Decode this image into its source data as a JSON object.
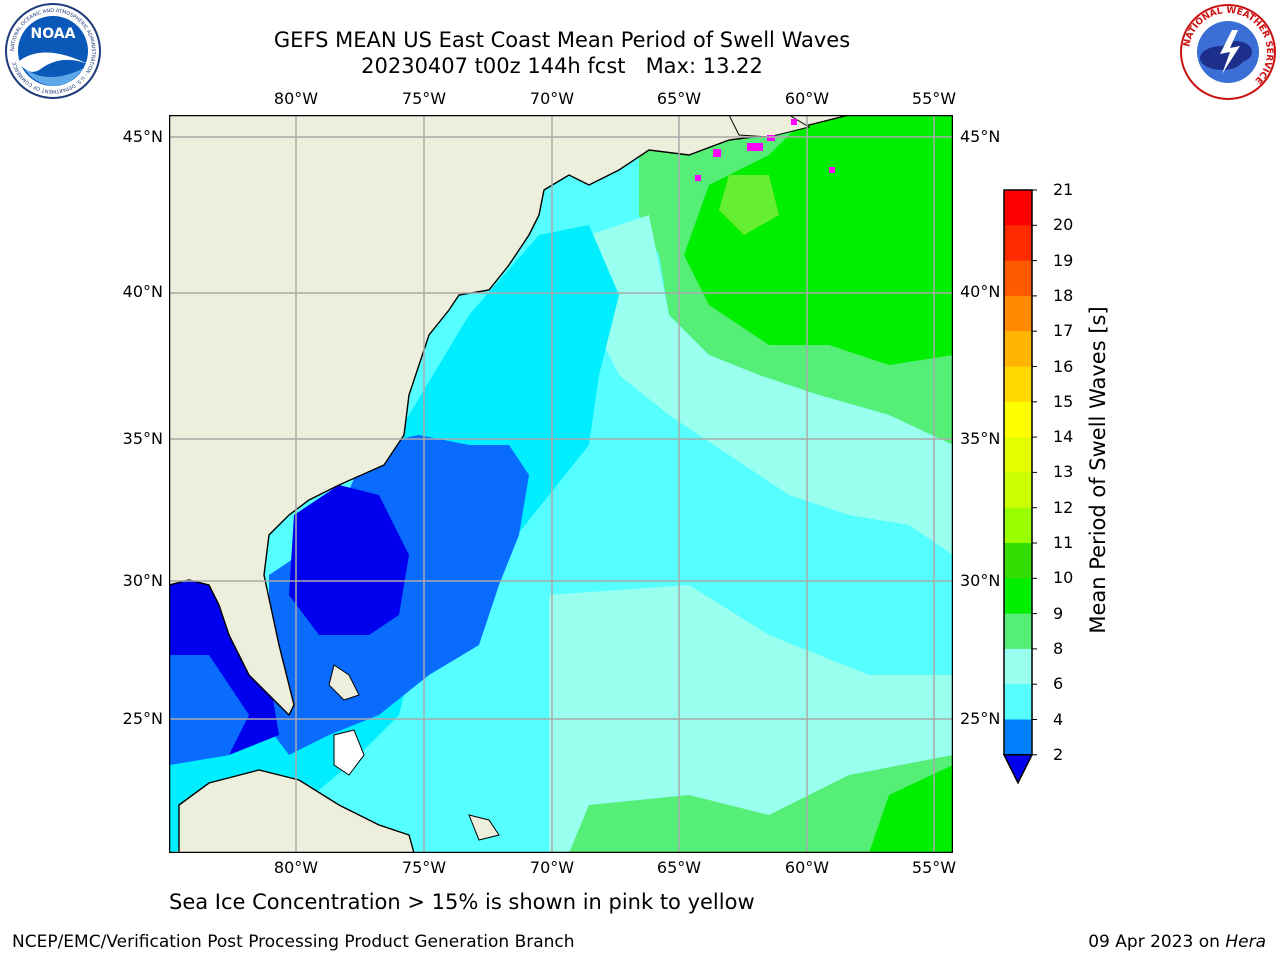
{
  "header": {
    "title_line1": "GEFS MEAN US East Coast Mean Period of Swell Waves",
    "title_date": "20230407 t00z 144h fcst",
    "title_max": "Max: 13.22"
  },
  "logos": {
    "noaa_text": "NOAA",
    "noaa_ring": "NATIONAL OCEANIC AND ATMOSPHERIC ADMINISTRATION · U.S. DEPARTMENT OF COMMERCE",
    "nws_ring": "NATIONAL WEATHER SERVICE"
  },
  "axes": {
    "lon_labels": [
      "80°W",
      "75°W",
      "70°W",
      "65°W",
      "60°W",
      "55°W"
    ],
    "lat_labels": [
      "45°N",
      "40°N",
      "35°N",
      "30°N",
      "25°N"
    ]
  },
  "colorbar": {
    "title": "Mean Period of Swell Waves [s]",
    "ticks": [
      "21",
      "20",
      "19",
      "18",
      "17",
      "16",
      "15",
      "14",
      "13",
      "12",
      "11",
      "10",
      "9",
      "8",
      "6",
      "4",
      "2"
    ],
    "colors": [
      "#ff0000",
      "#ff2a00",
      "#ff5a00",
      "#ff8a00",
      "#ffb400",
      "#ffd800",
      "#ffff00",
      "#e6ff00",
      "#ccff00",
      "#99ff00",
      "#33dd00",
      "#00ee00",
      "#55ee77",
      "#99ffee",
      "#55ffff",
      "#00f0ff",
      "#0080ff"
    ],
    "under_color": "#0000ee"
  },
  "colors": {
    "land": "#eeeedd",
    "deep_blue": "#0000ee",
    "blue": "#0a6cff",
    "cyan": "#00eeff",
    "light_cyan": "#55ffff",
    "pale_cyan": "#99ffee",
    "light_green": "#55ee77",
    "green": "#00ee00",
    "ice": "#ff00ff"
  },
  "note": "Sea Ice Concentration > 15% is shown in pink to yellow",
  "footer": {
    "left": "NCEP/EMC/Verification Post Processing Product Generation Branch",
    "right_date": "09 Apr 2023 on ",
    "right_host": "Hera"
  }
}
